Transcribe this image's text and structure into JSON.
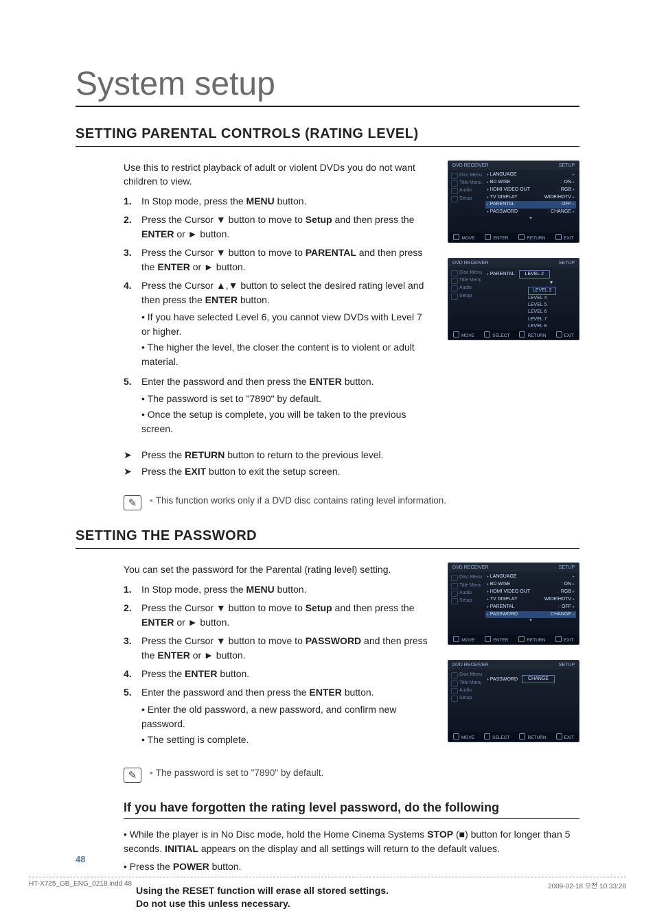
{
  "page": {
    "title": "System setup",
    "number": "48",
    "foot_left": "HT-X725_GB_ENG_0218.indd   48",
    "foot_right": "2009-02-18   오전 10:33:28"
  },
  "sec1": {
    "heading": "SETTING PARENTAL CONTROLS (RATING LEVEL)",
    "lead": "Use this to restrict playback of adult or violent DVDs you do not want children to view.",
    "steps": [
      {
        "n": "1.",
        "pre": "In Stop mode, press the ",
        "b": "MENU",
        "post": " button."
      },
      {
        "n": "2.",
        "pre": "Press the Cursor ▼ button to move to ",
        "b": "Setup",
        "post": " and then press the ",
        "b2": "ENTER",
        "post2": " or ► button."
      },
      {
        "n": "3.",
        "pre": "Press the Cursor ▼ button to move to ",
        "b": "PARENTAL",
        "post": " and then press the ",
        "b2": "ENTER",
        "post2": " or ► button."
      },
      {
        "n": "4.",
        "pre": "Press the Cursor ▲,▼ button to select the desired rating level and then press the ",
        "b": "ENTER",
        "post": " button.",
        "subs": [
          "If you have selected Level 6, you cannot view DVDs with Level 7 or higher.",
          "The higher the level, the closer the content is to violent or adult material."
        ]
      },
      {
        "n": "5.",
        "pre": "Enter the password and then press the ",
        "b": "ENTER",
        "post": " button.",
        "subs": [
          "The password is set to \"7890\" by default.",
          "Once the setup is complete, you will be taken to the previous screen."
        ]
      }
    ],
    "arrows": [
      {
        "pre": "Press the ",
        "b": "RETURN",
        "post": " button to return to the previous level."
      },
      {
        "pre": "Press the ",
        "b": "EXIT",
        "post": " button to exit the setup screen."
      }
    ],
    "note": "This function works only if a DVD disc contains rating level information."
  },
  "sec2": {
    "heading": "SETTING THE PASSWORD",
    "lead": "You can set the password for the Parental (rating level) setting.",
    "steps": [
      {
        "n": "1.",
        "pre": "In Stop mode, press the ",
        "b": "MENU",
        "post": " button."
      },
      {
        "n": "2.",
        "pre": "Press the Cursor ▼ button to move to ",
        "b": "Setup",
        "post": " and then press the ",
        "b2": "ENTER",
        "post2": " or ► button."
      },
      {
        "n": "3.",
        "pre": "Press the Cursor ▼ button to move to ",
        "b": "PASSWORD",
        "post": " and then press the ",
        "b2": "ENTER",
        "post2": " or ► button."
      },
      {
        "n": "4.",
        "pre": "Press the ",
        "b": "ENTER",
        "post": " button."
      },
      {
        "n": "5.",
        "pre": "Enter the password and then press the ",
        "b": "ENTER",
        "post": " button.",
        "subs": [
          "Enter the old password, a new password, and confirm new password.",
          "The setting is complete."
        ]
      }
    ],
    "note": "The password is set to \"7890\" by default.",
    "sub_heading": "If you have forgotten the rating level password, do the following",
    "bullets": [
      {
        "pre": "While the player is in No Disc mode, hold the Home Cinema Systems ",
        "b": "STOP",
        "mid": " (■) button for longer than 5 seconds. ",
        "b2": "INITIAL",
        "post": " appears on the display and all settings will return to the default values."
      },
      {
        "pre": "Press the ",
        "b": "POWER",
        "post": " button."
      }
    ],
    "warn1": "Using the RESET function will erase all stored settings.",
    "warn2": "Do not use this unless necessary."
  },
  "osd": {
    "hdr_left": "DVD RECEIVER",
    "hdr_right": "SETUP",
    "side": [
      "Disc Menu",
      "Title Menu",
      "Audio",
      "Setup"
    ],
    "menu": [
      {
        "l": "LANGUAGE",
        "v": ""
      },
      {
        "l": "BD WISE",
        "v": "ON"
      },
      {
        "l": "HDMI VIDEO OUT",
        "v": "RGB"
      },
      {
        "l": "TV DISPLAY",
        "v": "WIDE/HDTV"
      },
      {
        "l": "PARENTAL",
        "v": "OFF"
      },
      {
        "l": "PASSWORD",
        "v": "CHANGE"
      }
    ],
    "menu_sel_parental": 4,
    "menu_sel_password": 5,
    "levels_label": "PARENTAL",
    "levels": [
      "LEVEL 2",
      "LEVEL 3",
      "LEVEL 4",
      "LEVEL 5",
      "LEVEL 6",
      "LEVEL 7",
      "LEVEL 8"
    ],
    "levels_boxed": [
      0,
      1
    ],
    "pwd_label": "PASSWORD",
    "pwd_val": "CHANGE",
    "ft_move": "MOVE",
    "ft_enter": "ENTER",
    "ft_select": "SELECT",
    "ft_return": "RETURN",
    "ft_exit": "EXIT"
  }
}
